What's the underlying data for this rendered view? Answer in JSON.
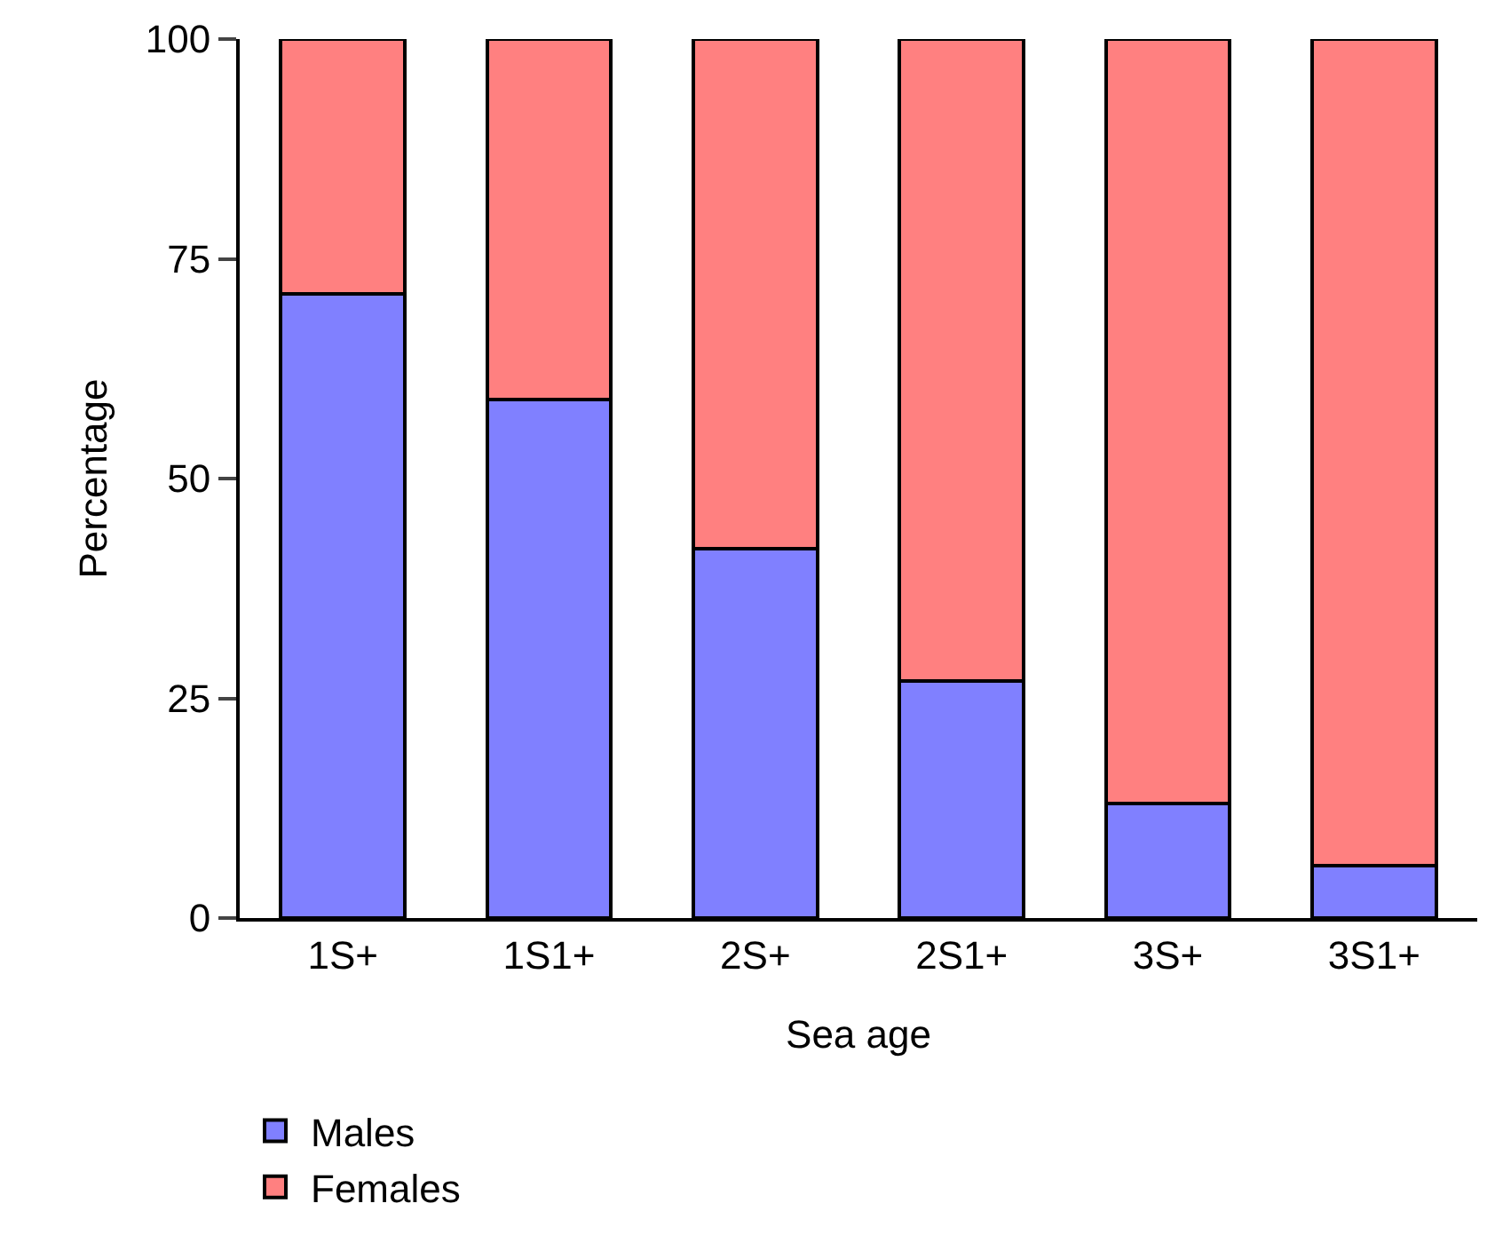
{
  "chart_data": {
    "type": "bar",
    "stacked": true,
    "xlabel": "Sea age",
    "ylabel": "Percentage",
    "categories": [
      "1S+",
      "1S1+",
      "2S+",
      "2S1+",
      "3S+",
      "3S1+"
    ],
    "series": [
      {
        "name": "Males",
        "color": "#8080ff",
        "values": [
          71,
          59,
          42,
          27,
          13,
          6
        ]
      },
      {
        "name": "Females",
        "color": "#ff8080",
        "values": [
          29,
          41,
          58,
          73,
          87,
          94
        ]
      }
    ],
    "ylim": [
      0,
      100
    ],
    "yticks": [
      0,
      25,
      50,
      75,
      100
    ],
    "legend": "bottom left"
  }
}
